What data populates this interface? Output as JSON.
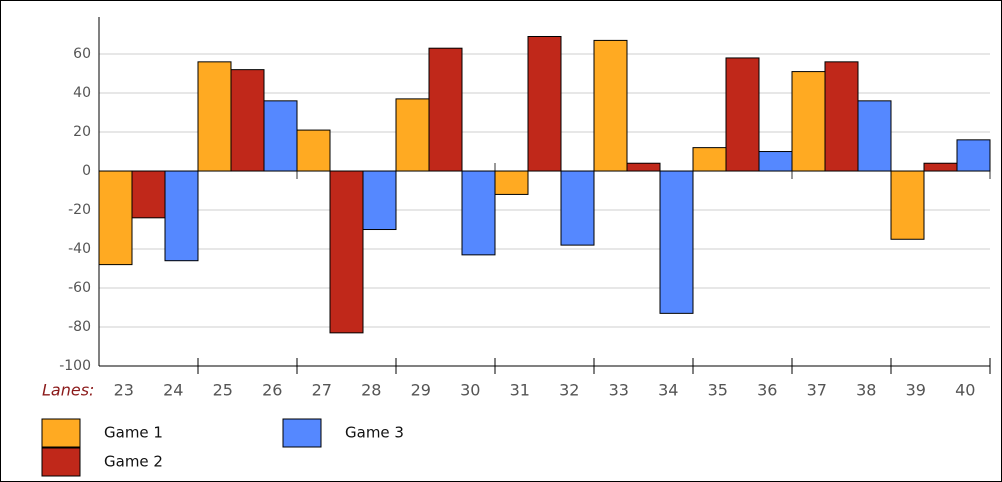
{
  "chart_data": {
    "type": "bar",
    "x_label": "Lanes:",
    "lanes": [
      23,
      24,
      25,
      26,
      27,
      28,
      29,
      30,
      31,
      32,
      33,
      34,
      35,
      36,
      37,
      38,
      39,
      40
    ],
    "categories": [
      null,
      null,
      null,
      null,
      null,
      null,
      null,
      null,
      null
    ],
    "series": [
      {
        "name": "Game 1",
        "color": "#ffaa22",
        "values": [
          -48,
          56,
          21,
          37,
          -12,
          67,
          12,
          51,
          -35
        ]
      },
      {
        "name": "Game 2",
        "color": "#c0281a",
        "values": [
          -24,
          52,
          -83,
          63,
          69,
          4,
          58,
          56,
          4
        ]
      },
      {
        "name": "Game 3",
        "color": "#5588ff",
        "values": [
          -46,
          36,
          -30,
          -43,
          -38,
          -73,
          10,
          36,
          16
        ]
      }
    ],
    "ylim": [
      -100,
      79
    ],
    "yticks": [
      -100,
      -80,
      -60,
      -40,
      -20,
      0,
      20,
      40,
      60
    ],
    "grid": true
  }
}
